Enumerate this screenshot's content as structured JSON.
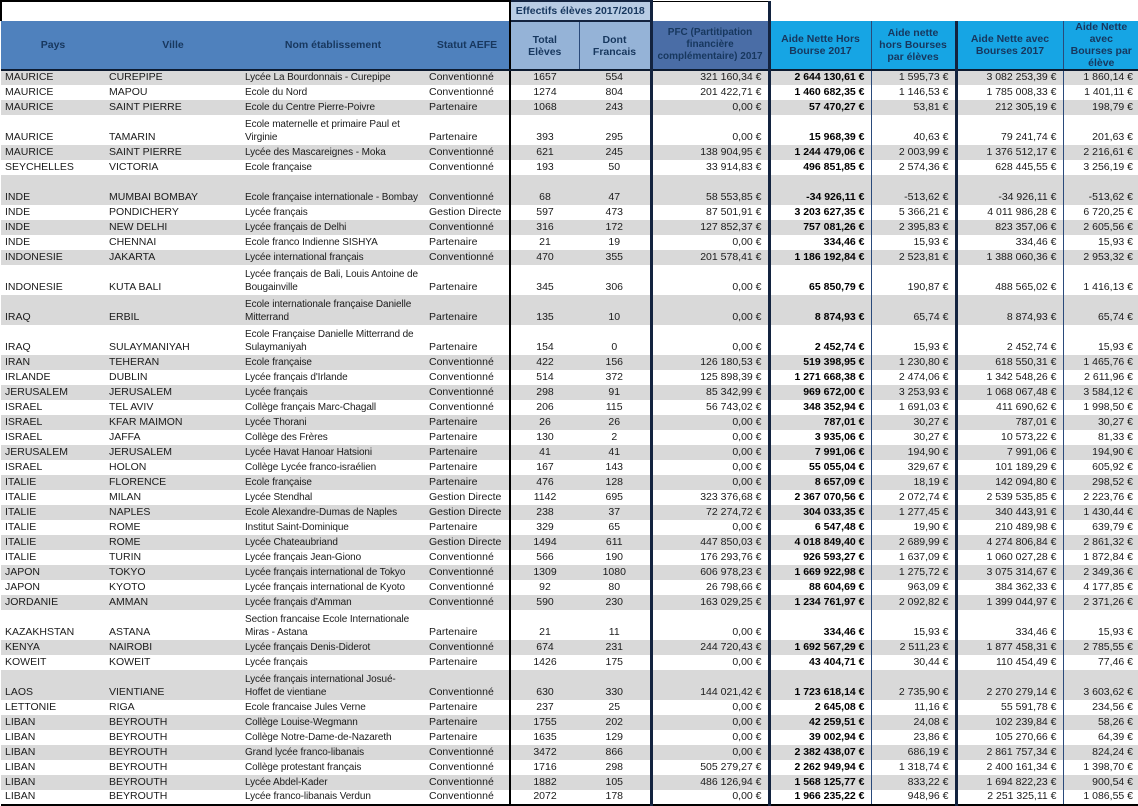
{
  "colors": {
    "header_band_blue": "#4F81BD",
    "header_light_blue": "#95B3D7",
    "effectifs_cell_blue": "#B8CCE4",
    "pfc_header_blue": "#4A6DA6",
    "cyan_header": "#16A5E4",
    "stripe_gray": "#D9D9D9",
    "thick_border_navy": "#13233F",
    "header_text_navy": "#17375E"
  },
  "table": {
    "group_header": {
      "effectifs_label": "Effectifs élèves 2017/2018"
    },
    "columns": [
      {
        "key": "pays",
        "label": "Pays"
      },
      {
        "key": "ville",
        "label": "Ville"
      },
      {
        "key": "nom",
        "label": "Nom établissement"
      },
      {
        "key": "statut",
        "label": "Statut AEFE"
      },
      {
        "key": "total",
        "label": "Total Elèves"
      },
      {
        "key": "dont",
        "label": "Dont Francais"
      },
      {
        "key": "pfc",
        "label": "PFC (Partitipation financière complémentaire) 2017"
      },
      {
        "key": "ahb",
        "label": "Aide Nette Hors Bourse 2017"
      },
      {
        "key": "ahbe",
        "label": "Aide nette hors Bourses par élèves"
      },
      {
        "key": "aab",
        "label": "Aide Nette avec Bourses 2017"
      },
      {
        "key": "aabe",
        "label": "Aide Nette avec Bourses par élève"
      }
    ],
    "rows": [
      {
        "pays": "MAURICE",
        "ville": "CUREPIPE",
        "nom": "Lycée La Bourdonnais - Curepipe",
        "statut": "Conventionné",
        "total": "1657",
        "dont": "554",
        "pfc": "321 160,34 €",
        "ahb": "2 644 130,61 €",
        "ahbe": "1 595,73 €",
        "aab": "3 082 253,39 €",
        "aabe": "1 860,14 €"
      },
      {
        "pays": "MAURICE",
        "ville": "MAPOU",
        "nom": "Ecole du Nord",
        "statut": "Conventionné",
        "total": "1274",
        "dont": "804",
        "pfc": "201 422,71 €",
        "ahb": "1 460 682,35 €",
        "ahbe": "1 146,53 €",
        "aab": "1 785 008,33 €",
        "aabe": "1 401,11 €"
      },
      {
        "pays": "MAURICE",
        "ville": "SAINT PIERRE",
        "nom": "Ecole du Centre Pierre-Poivre",
        "statut": "Partenaire",
        "total": "1068",
        "dont": "243",
        "pfc": "0,00 €",
        "ahb": "57 470,27 €",
        "ahbe": "53,81 €",
        "aab": "212 305,19 €",
        "aabe": "198,79 €"
      },
      {
        "pays": "MAURICE",
        "ville": "TAMARIN",
        "nom": "Ecole maternelle et primaire Paul et Virginie",
        "statut": "Partenaire",
        "total": "393",
        "dont": "295",
        "pfc": "0,00 €",
        "ahb": "15 968,39 €",
        "ahbe": "40,63 €",
        "aab": "79 241,74 €",
        "aabe": "201,63 €",
        "tall": true
      },
      {
        "pays": "MAURICE",
        "ville": "SAINT PIERRE",
        "nom": "Lycée des Mascareignes - Moka",
        "statut": "Conventionné",
        "total": "621",
        "dont": "245",
        "pfc": "138 904,95 €",
        "ahb": "1 244 479,06 €",
        "ahbe": "2 003,99 €",
        "aab": "1 376 512,17 €",
        "aabe": "2 216,61 €"
      },
      {
        "pays": "SEYCHELLES",
        "ville": "VICTORIA",
        "nom": "Ecole française",
        "statut": "Conventionné",
        "total": "193",
        "dont": "50",
        "pfc": "33 914,83 €",
        "ahb": "496 851,85 €",
        "ahbe": "2 574,36 €",
        "aab": "628 445,55 €",
        "aabe": "3 256,19 €"
      },
      {
        "pays": "INDE",
        "ville": "MUMBAI  BOMBAY",
        "nom": "Ecole française internationale - Bombay",
        "statut": "Conventionné",
        "total": "68",
        "dont": "47",
        "pfc": "58 553,85 €",
        "ahb": "-34 926,11 €",
        "ahbe": "-513,62 €",
        "aab": "-34 926,11 €",
        "aabe": "-513,62 €",
        "tall": true
      },
      {
        "pays": "INDE",
        "ville": "PONDICHERY",
        "nom": "Lycée français",
        "statut": "Gestion Directe",
        "total": "597",
        "dont": "473",
        "pfc": "87 501,91 €",
        "ahb": "3 203 627,35 €",
        "ahbe": "5 366,21 €",
        "aab": "4 011 986,28 €",
        "aabe": "6 720,25 €"
      },
      {
        "pays": "INDE",
        "ville": "NEW DELHI",
        "nom": "Lycée français de Delhi",
        "statut": "Conventionné",
        "total": "316",
        "dont": "172",
        "pfc": "127 852,37 €",
        "ahb": "757 081,26 €",
        "ahbe": "2 395,83 €",
        "aab": "823 357,06 €",
        "aabe": "2 605,56 €"
      },
      {
        "pays": "INDE",
        "ville": "CHENNAI",
        "nom": "Ecole franco Indienne SISHYA",
        "statut": "Partenaire",
        "total": "21",
        "dont": "19",
        "pfc": "0,00 €",
        "ahb": "334,46 €",
        "ahbe": "15,93 €",
        "aab": "334,46 €",
        "aabe": "15,93 €"
      },
      {
        "pays": "INDONESIE",
        "ville": "JAKARTA",
        "nom": "Lycée international français",
        "statut": "Conventionné",
        "total": "470",
        "dont": "355",
        "pfc": "201 578,41 €",
        "ahb": "1 186 192,84 €",
        "ahbe": "2 523,81 €",
        "aab": "1 388 060,36 €",
        "aabe": "2 953,32 €"
      },
      {
        "pays": "INDONESIE",
        "ville": "KUTA BALI",
        "nom": "Lycée français de Bali, Louis Antoine de Bougainville",
        "statut": "Partenaire",
        "total": "345",
        "dont": "306",
        "pfc": "0,00 €",
        "ahb": "65 850,79 €",
        "ahbe": "190,87 €",
        "aab": "488 565,02 €",
        "aabe": "1 416,13 €",
        "tall": true
      },
      {
        "pays": "IRAQ",
        "ville": "ERBIL",
        "nom": "Ecole internationale française Danielle Mitterrand",
        "statut": "Partenaire",
        "total": "135",
        "dont": "10",
        "pfc": "0,00 €",
        "ahb": "8 874,93 €",
        "ahbe": "65,74 €",
        "aab": "8 874,93 €",
        "aabe": "65,74 €",
        "tall": true
      },
      {
        "pays": "IRAQ",
        "ville": "SULAYMANIYAH",
        "nom": "Ecole Française Danielle Mitterrand de Sulaymaniyah",
        "statut": "Partenaire",
        "total": "154",
        "dont": "0",
        "pfc": "0,00 €",
        "ahb": "2 452,74 €",
        "ahbe": "15,93 €",
        "aab": "2 452,74 €",
        "aabe": "15,93 €",
        "tall": true
      },
      {
        "pays": "IRAN",
        "ville": "TEHERAN",
        "nom": "Ecole française",
        "statut": "Conventionné",
        "total": "422",
        "dont": "156",
        "pfc": "126 180,53 €",
        "ahb": "519 398,95 €",
        "ahbe": "1 230,80 €",
        "aab": "618 550,31 €",
        "aabe": "1 465,76 €"
      },
      {
        "pays": "IRLANDE",
        "ville": "DUBLIN",
        "nom": "Lycée français d'Irlande",
        "statut": "Conventionné",
        "total": "514",
        "dont": "372",
        "pfc": "125 898,39 €",
        "ahb": "1 271 668,38 €",
        "ahbe": "2 474,06 €",
        "aab": "1 342 548,26 €",
        "aabe": "2 611,96 €"
      },
      {
        "pays": "JERUSALEM",
        "ville": "JERUSALEM",
        "nom": "Lycée français",
        "statut": "Conventionné",
        "total": "298",
        "dont": "91",
        "pfc": "85 342,99 €",
        "ahb": "969 672,00 €",
        "ahbe": "3 253,93 €",
        "aab": "1 068 067,48 €",
        "aabe": "3 584,12 €"
      },
      {
        "pays": "ISRAEL",
        "ville": "TEL AVIV",
        "nom": "Collège français Marc-Chagall",
        "statut": "Conventionné",
        "total": "206",
        "dont": "115",
        "pfc": "56 743,02 €",
        "ahb": "348 352,94 €",
        "ahbe": "1 691,03 €",
        "aab": "411 690,62 €",
        "aabe": "1 998,50 €"
      },
      {
        "pays": "ISRAEL",
        "ville": "KFAR MAIMON",
        "nom": "Lycée Thorani",
        "statut": "Partenaire",
        "total": "26",
        "dont": "26",
        "pfc": "0,00 €",
        "ahb": "787,01 €",
        "ahbe": "30,27 €",
        "aab": "787,01 €",
        "aabe": "30,27 €"
      },
      {
        "pays": "ISRAEL",
        "ville": "JAFFA",
        "nom": "Collège des Frères",
        "statut": "Partenaire",
        "total": "130",
        "dont": "2",
        "pfc": "0,00 €",
        "ahb": "3 935,06 €",
        "ahbe": "30,27 €",
        "aab": "10 573,22 €",
        "aabe": "81,33 €"
      },
      {
        "pays": "JERUSALEM",
        "ville": "JERUSALEM",
        "nom": "Lycée Havat Hanoar Hatsioni",
        "statut": "Partenaire",
        "total": "41",
        "dont": "41",
        "pfc": "0,00 €",
        "ahb": "7 991,06 €",
        "ahbe": "194,90 €",
        "aab": "7 991,06 €",
        "aabe": "194,90 €"
      },
      {
        "pays": "ISRAEL",
        "ville": "HOLON",
        "nom": "Collège Lycée franco-israélien",
        "statut": "Partenaire",
        "total": "167",
        "dont": "143",
        "pfc": "0,00 €",
        "ahb": "55 055,04 €",
        "ahbe": "329,67 €",
        "aab": "101 189,29 €",
        "aabe": "605,92 €"
      },
      {
        "pays": "ITALIE",
        "ville": "FLORENCE",
        "nom": "Ecole française",
        "statut": "Partenaire",
        "total": "476",
        "dont": "128",
        "pfc": "0,00 €",
        "ahb": "8 657,09 €",
        "ahbe": "18,19 €",
        "aab": "142 094,80 €",
        "aabe": "298,52 €"
      },
      {
        "pays": "ITALIE",
        "ville": "MILAN",
        "nom": "Lycée Stendhal",
        "statut": "Gestion Directe",
        "total": "1142",
        "dont": "695",
        "pfc": "323 376,68 €",
        "ahb": "2 367 070,56 €",
        "ahbe": "2 072,74 €",
        "aab": "2 539 535,85 €",
        "aabe": "2 223,76 €"
      },
      {
        "pays": "ITALIE",
        "ville": "NAPLES",
        "nom": "Ecole Alexandre-Dumas de Naples",
        "statut": "Gestion Directe",
        "total": "238",
        "dont": "37",
        "pfc": "72 274,72 €",
        "ahb": "304 033,35 €",
        "ahbe": "1 277,45 €",
        "aab": "340 443,91 €",
        "aabe": "1 430,44 €"
      },
      {
        "pays": "ITALIE",
        "ville": "ROME",
        "nom": "Institut Saint-Dominique",
        "statut": "Partenaire",
        "total": "329",
        "dont": "65",
        "pfc": "0,00 €",
        "ahb": "6 547,48 €",
        "ahbe": "19,90 €",
        "aab": "210 489,98 €",
        "aabe": "639,79 €"
      },
      {
        "pays": "ITALIE",
        "ville": "ROME",
        "nom": "Lycée Chateaubriand",
        "statut": "Gestion Directe",
        "total": "1494",
        "dont": "611",
        "pfc": "447 850,03 €",
        "ahb": "4 018 849,40 €",
        "ahbe": "2 689,99 €",
        "aab": "4 274 806,84 €",
        "aabe": "2 861,32 €"
      },
      {
        "pays": "ITALIE",
        "ville": "TURIN",
        "nom": "Lycée français Jean-Giono",
        "statut": "Conventionné",
        "total": "566",
        "dont": "190",
        "pfc": "176 293,76 €",
        "ahb": "926 593,27 €",
        "ahbe": "1 637,09 €",
        "aab": "1 060 027,28 €",
        "aabe": "1 872,84 €"
      },
      {
        "pays": "JAPON",
        "ville": "TOKYO",
        "nom": "Lycée français international de Tokyo",
        "statut": "Conventionné",
        "total": "1309",
        "dont": "1080",
        "pfc": "606 978,23 €",
        "ahb": "1 669 922,98 €",
        "ahbe": "1 275,72 €",
        "aab": "3 075 314,67 €",
        "aabe": "2 349,36 €"
      },
      {
        "pays": "JAPON",
        "ville": "KYOTO",
        "nom": "Lycée français international de Kyoto",
        "statut": "Conventionné",
        "total": "92",
        "dont": "80",
        "pfc": "26 798,66 €",
        "ahb": "88 604,69 €",
        "ahbe": "963,09 €",
        "aab": "384 362,33 €",
        "aabe": "4 177,85 €"
      },
      {
        "pays": "JORDANIE",
        "ville": "AMMAN",
        "nom": "Lycée français d'Amman",
        "statut": "Conventionné",
        "total": "590",
        "dont": "230",
        "pfc": "163 029,25 €",
        "ahb": "1 234 761,97 €",
        "ahbe": "2 092,82 €",
        "aab": "1 399 044,97 €",
        "aabe": "2 371,26 €"
      },
      {
        "pays": "KAZAKHSTAN",
        "ville": "ASTANA",
        "nom": "Section francaise Ecole Internationale Miras - Astana",
        "statut": "Partenaire",
        "total": "21",
        "dont": "11",
        "pfc": "0,00 €",
        "ahb": "334,46 €",
        "ahbe": "15,93 €",
        "aab": "334,46 €",
        "aabe": "15,93 €",
        "tall": true
      },
      {
        "pays": "KENYA",
        "ville": "NAIROBI",
        "nom": "Lycée français Denis-Diderot",
        "statut": "Conventionné",
        "total": "674",
        "dont": "231",
        "pfc": "244 720,43 €",
        "ahb": "1 692 567,29 €",
        "ahbe": "2 511,23 €",
        "aab": "1 877 458,31 €",
        "aabe": "2 785,55 €"
      },
      {
        "pays": "KOWEIT",
        "ville": "KOWEIT",
        "nom": "Lycée français",
        "statut": "Partenaire",
        "total": "1426",
        "dont": "175",
        "pfc": "0,00 €",
        "ahb": "43 404,71 €",
        "ahbe": "30,44 €",
        "aab": "110 454,49 €",
        "aabe": "77,46 €"
      },
      {
        "pays": "LAOS",
        "ville": "VIENTIANE",
        "nom": "Lycée français international Josué-Hoffet de vientiane",
        "statut": "Conventionné",
        "total": "630",
        "dont": "330",
        "pfc": "144 021,42 €",
        "ahb": "1 723 618,14 €",
        "ahbe": "2 735,90 €",
        "aab": "2 270 279,14 €",
        "aabe": "3 603,62 €",
        "tall": true
      },
      {
        "pays": "LETTONIE",
        "ville": "RIGA",
        "nom": "Ecole francaise Jules Verne",
        "statut": "Partenaire",
        "total": "237",
        "dont": "25",
        "pfc": "0,00 €",
        "ahb": "2 645,08 €",
        "ahbe": "11,16 €",
        "aab": "55 591,78 €",
        "aabe": "234,56 €"
      },
      {
        "pays": "LIBAN",
        "ville": "BEYROUTH",
        "nom": "Collège Louise-Wegmann",
        "statut": "Partenaire",
        "total": "1755",
        "dont": "202",
        "pfc": "0,00 €",
        "ahb": "42 259,51 €",
        "ahbe": "24,08 €",
        "aab": "102 239,84 €",
        "aabe": "58,26 €"
      },
      {
        "pays": "LIBAN",
        "ville": "BEYROUTH",
        "nom": "Collège Notre-Dame-de-Nazareth",
        "statut": "Partenaire",
        "total": "1635",
        "dont": "129",
        "pfc": "0,00 €",
        "ahb": "39 002,94 €",
        "ahbe": "23,86 €",
        "aab": "105 270,66 €",
        "aabe": "64,39 €"
      },
      {
        "pays": "LIBAN",
        "ville": "BEYROUTH",
        "nom": "Grand lycée franco-libanais",
        "statut": "Conventionné",
        "total": "3472",
        "dont": "866",
        "pfc": "0,00 €",
        "ahb": "2 382 438,07 €",
        "ahbe": "686,19 €",
        "aab": "2 861 757,34 €",
        "aabe": "824,24 €"
      },
      {
        "pays": "LIBAN",
        "ville": "BEYROUTH",
        "nom": "Collège protestant français",
        "statut": "Conventionné",
        "total": "1716",
        "dont": "298",
        "pfc": "505 279,27 €",
        "ahb": "2 262 949,94 €",
        "ahbe": "1 318,74 €",
        "aab": "2 400 161,34 €",
        "aabe": "1 398,70 €"
      },
      {
        "pays": "LIBAN",
        "ville": "BEYROUTH",
        "nom": "Lycée Abdel-Kader",
        "statut": "Conventionné",
        "total": "1882",
        "dont": "105",
        "pfc": "486 126,94 €",
        "ahb": "1 568 125,77 €",
        "ahbe": "833,22 €",
        "aab": "1 694 822,23 €",
        "aabe": "900,54 €"
      },
      {
        "pays": "LIBAN",
        "ville": "BEYROUTH",
        "nom": "Lycée franco-libanais Verdun",
        "statut": "Conventionné",
        "total": "2072",
        "dont": "178",
        "pfc": "0,00 €",
        "ahb": "1 966 235,22 €",
        "ahbe": "948,96 €",
        "aab": "2 251 325,11 €",
        "aabe": "1 086,55 €"
      }
    ]
  }
}
